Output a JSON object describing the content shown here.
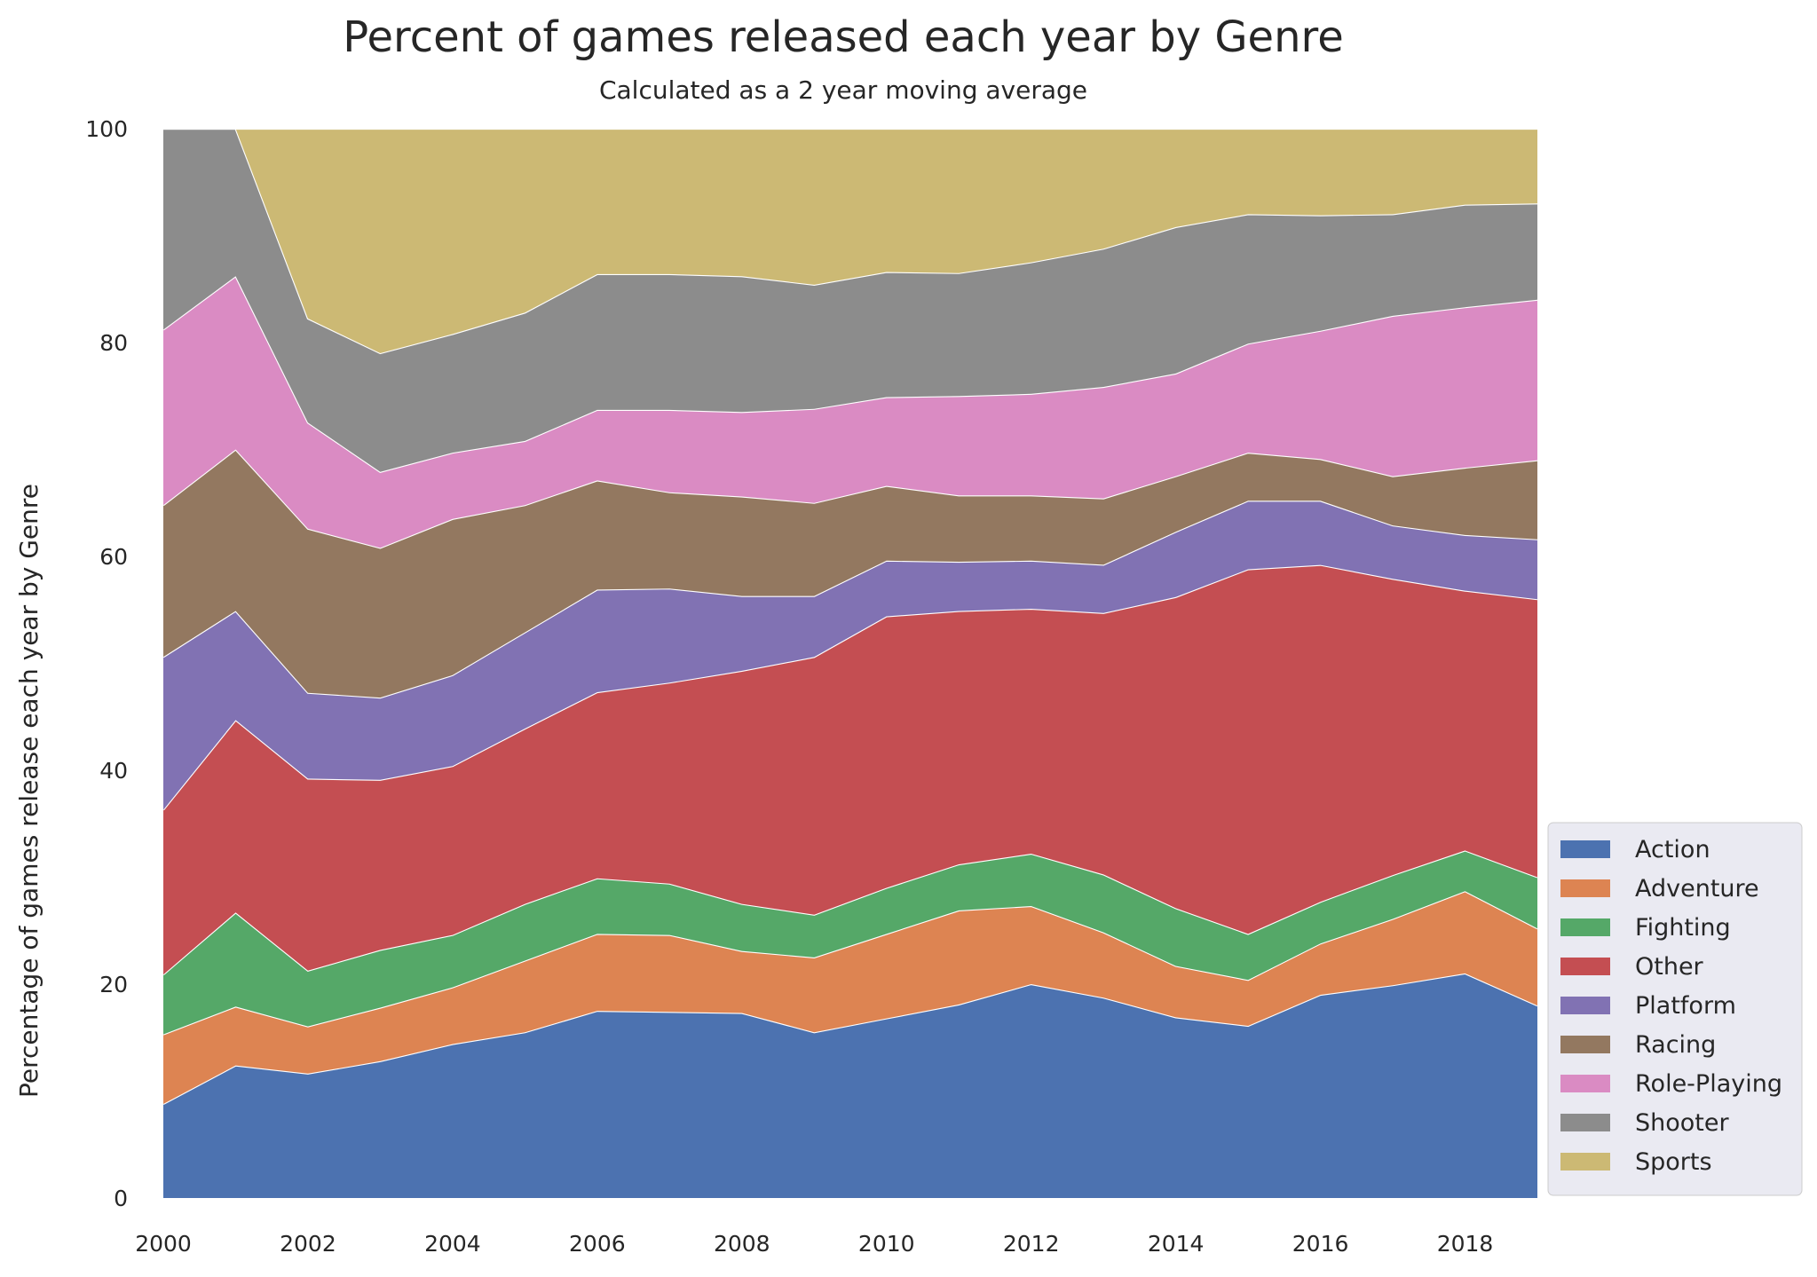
{
  "chart_data": {
    "type": "area",
    "stacked": true,
    "title": "Percent of games released each year by Genre",
    "subtitle": "Calculated as a 2 year moving average",
    "xlabel": "",
    "ylabel": "Percentage of games release each year by Genre",
    "xlim": [
      2000,
      2019
    ],
    "ylim": [
      0,
      100
    ],
    "x_ticks": [
      "2000",
      "2002",
      "2004",
      "2006",
      "2008",
      "2010",
      "2012",
      "2014",
      "2016",
      "2018"
    ],
    "y_ticks": [
      "0",
      "20",
      "40",
      "60",
      "80",
      "100"
    ],
    "grid": false,
    "legend_position": "lower-right",
    "x": [
      2000,
      2001,
      2002,
      2003,
      2004,
      2005,
      2006,
      2007,
      2008,
      2009,
      2010,
      2011,
      2012,
      2013,
      2014,
      2015,
      2016,
      2017,
      2018,
      2019
    ],
    "series": [
      {
        "name": "Action",
        "color": "#4c72b0",
        "values": [
          8.8,
          12.4,
          11.6,
          12.8,
          14.4,
          15.5,
          17.5,
          17.4,
          17.3,
          15.5,
          16.8,
          18.1,
          20.0,
          18.7,
          16.9,
          16.1,
          19.0,
          19.9,
          21.0,
          18.0
        ]
      },
      {
        "name": "Adventure",
        "color": "#dd8452",
        "values": [
          6.5,
          5.5,
          4.4,
          5.0,
          5.3,
          6.7,
          7.2,
          7.2,
          5.8,
          7.0,
          7.9,
          8.8,
          7.3,
          6.1,
          4.8,
          4.3,
          4.8,
          6.2,
          7.7,
          7.2
        ]
      },
      {
        "name": "Fighting",
        "color": "#55a868",
        "values": [
          5.6,
          8.8,
          5.2,
          5.4,
          4.9,
          5.3,
          5.2,
          4.8,
          4.4,
          4.0,
          4.3,
          4.3,
          4.9,
          5.4,
          5.4,
          4.3,
          3.9,
          4.1,
          3.8,
          4.8
        ]
      },
      {
        "name": "Other",
        "color": "#c44e52",
        "values": [
          15.4,
          18.0,
          17.9,
          15.9,
          15.8,
          16.4,
          17.4,
          18.8,
          21.8,
          24.1,
          25.4,
          23.7,
          22.9,
          24.4,
          29.1,
          34.1,
          31.5,
          27.7,
          24.3,
          26.0
        ]
      },
      {
        "name": "Platform",
        "color": "#8172b3",
        "values": [
          14.3,
          10.2,
          8.0,
          7.7,
          8.5,
          9.0,
          9.6,
          8.8,
          7.0,
          5.7,
          5.2,
          4.6,
          4.5,
          4.5,
          6.1,
          6.4,
          6.0,
          5.0,
          5.2,
          5.6
        ]
      },
      {
        "name": "Racing",
        "color": "#937860",
        "values": [
          14.2,
          15.1,
          15.3,
          14.0,
          14.6,
          11.9,
          10.2,
          9.0,
          9.3,
          8.7,
          7.0,
          6.2,
          6.1,
          6.2,
          5.2,
          4.5,
          3.9,
          4.6,
          6.3,
          7.4
        ]
      },
      {
        "name": "Role-Playing",
        "color": "#da8bc3",
        "values": [
          16.4,
          16.2,
          9.9,
          7.1,
          6.2,
          6.0,
          6.6,
          7.7,
          7.9,
          8.8,
          8.3,
          9.3,
          9.5,
          10.4,
          9.6,
          10.2,
          12.0,
          15.0,
          15.0,
          15.0
        ]
      },
      {
        "name": "Shooter",
        "color": "#8c8c8c",
        "values": [
          18.8,
          13.8,
          9.7,
          11.1,
          11.1,
          12.0,
          12.7,
          12.7,
          12.7,
          11.6,
          11.7,
          11.5,
          12.3,
          12.9,
          13.7,
          12.1,
          10.8,
          9.5,
          9.6,
          9.0
        ]
      },
      {
        "name": "Sports",
        "color": "#ccb974",
        "values": [
          0.0,
          0.0,
          17.7,
          21.0,
          19.2,
          17.2,
          13.6,
          13.6,
          13.8,
          14.6,
          13.4,
          13.5,
          12.5,
          11.2,
          9.2,
          8.0,
          8.1,
          8.0,
          7.1,
          7.0
        ]
      }
    ]
  }
}
